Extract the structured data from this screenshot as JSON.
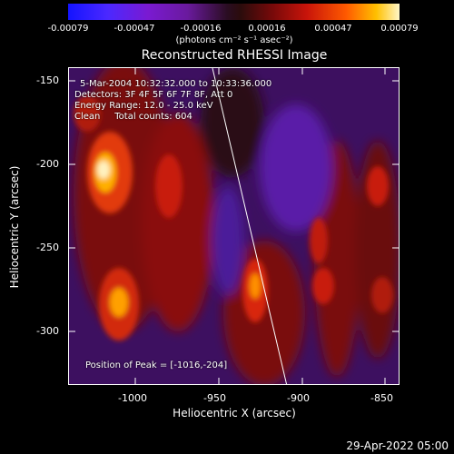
{
  "colorbar": {
    "ticks": [
      "-0.00079",
      "-0.00047",
      "-0.00016",
      "0.00016",
      "0.00047",
      "0.00079"
    ],
    "units_label": "(photons cm⁻² s⁻¹ asec⁻²)"
  },
  "image": {
    "title": "Reconstructed RHESSI Image",
    "info": {
      "time_range": "5-Mar-2004 10:32:32.000 to 10:33:36.000",
      "detectors": "Detectors: 3F 4F 5F 6F 7F 8F, Att 0",
      "energy_range": "Energy Range: 12.0 - 25.0 keV",
      "clean_counts": "Clean     Total counts: 604"
    },
    "peak_position": "Position of Peak = [-1016,-204]"
  },
  "axes": {
    "x": {
      "title": "Heliocentric X (arcsec)",
      "ticks": [
        "-1000",
        "-950",
        "-900",
        "-850"
      ],
      "range": [
        -1045,
        -845
      ]
    },
    "y": {
      "title": "Heliocentric Y (arcsec)",
      "ticks": [
        "-150",
        "-200",
        "-250",
        "-300"
      ],
      "range": [
        -330,
        -140
      ]
    }
  },
  "footer": {
    "timestamp": "29-Apr-2022 05:00"
  },
  "colors": {
    "background": "#000000",
    "foreground": "#ffffff",
    "colormap_low": "#1414ff",
    "colormap_mid": "#2b0c0c",
    "colormap_high": "#fff6c8"
  }
}
